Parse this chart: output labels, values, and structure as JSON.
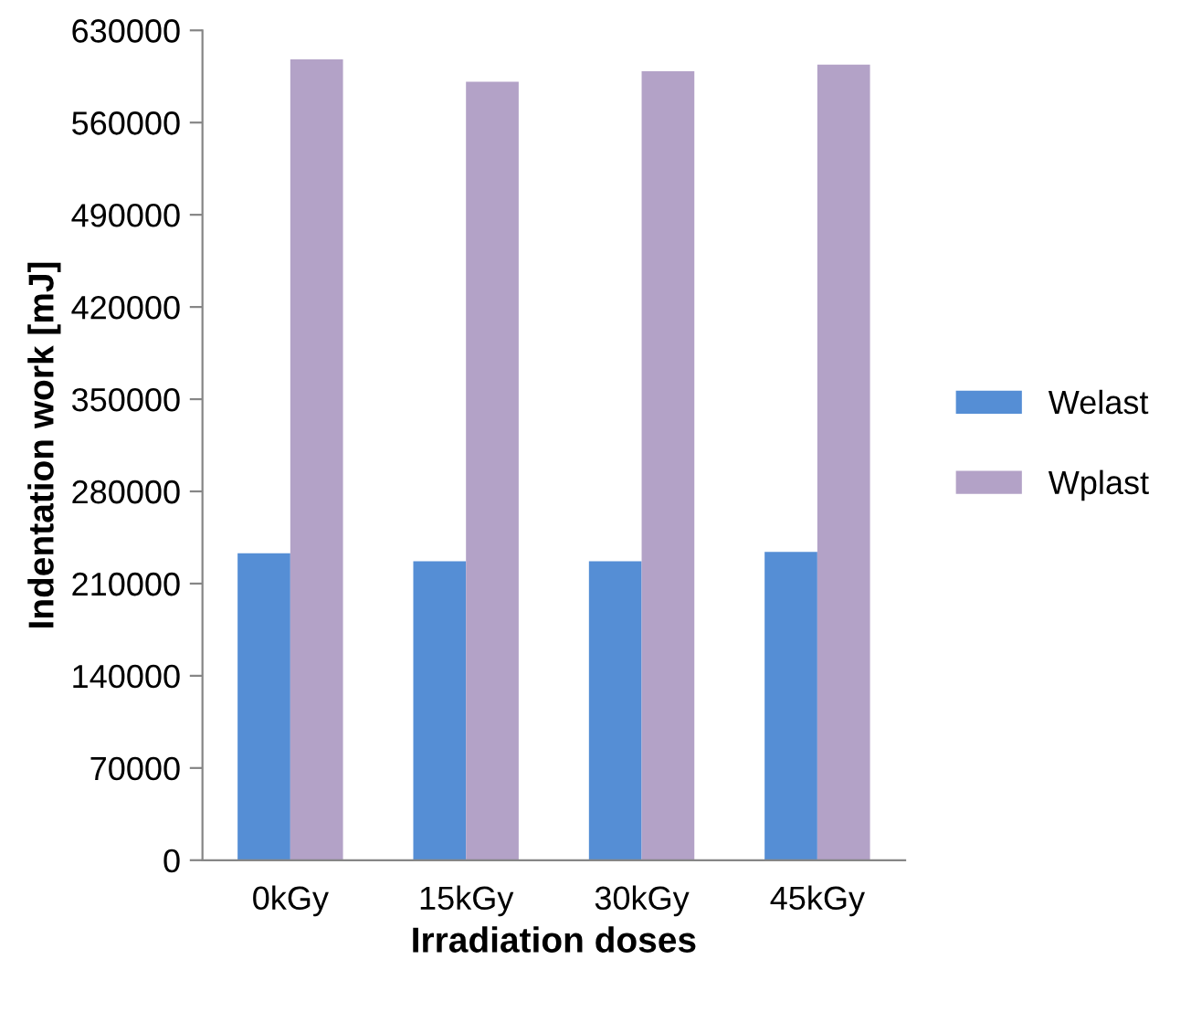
{
  "chart_data": {
    "type": "bar",
    "xlabel": "Irradiation doses",
    "ylabel": "Indentation work [mJ]",
    "categories": [
      "0kGy",
      "15kGy",
      "30kGy",
      "45kGy"
    ],
    "series": [
      {
        "name": "Welast",
        "color": "#558ed5",
        "values": [
          233000,
          227000,
          227000,
          234000
        ]
      },
      {
        "name": "Wplast",
        "color": "#b3a2c7",
        "values": [
          608000,
          591000,
          599000,
          604000
        ]
      }
    ],
    "ylim": [
      0,
      630000
    ],
    "yticks": [
      0,
      70000,
      140000,
      210000,
      280000,
      350000,
      420000,
      490000,
      560000,
      630000
    ],
    "grid": false,
    "legend": "right"
  }
}
